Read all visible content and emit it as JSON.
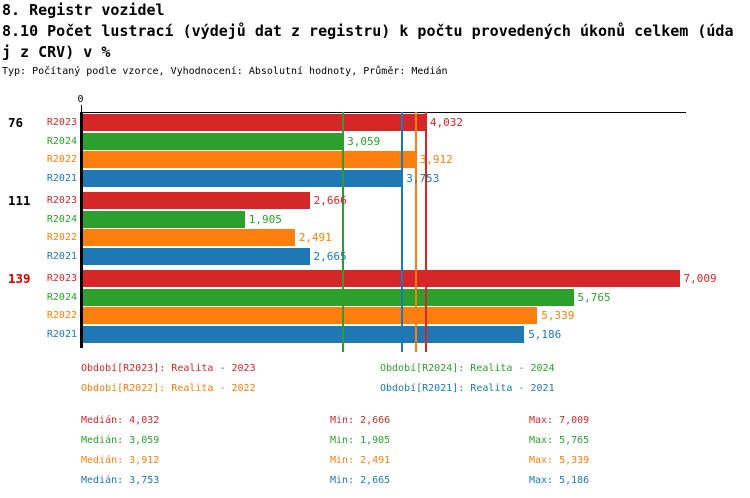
{
  "header": {
    "title": "8. Registr vozidel",
    "subtitle_line1": "8.10 Počet lustrací (výdejů dat z registru) k počtu provedených úkonů celkem (úda",
    "subtitle_line2": "j z CRV) v %",
    "meta": "Typ: Počítaný podle vzorce, Vyhodnocení: Absolutní hodnoty, Průměr: Medián"
  },
  "colors": {
    "R2023": "#d62728",
    "R2024": "#2ca02c",
    "R2022": "#ff7f0e",
    "R2021": "#1f77b4",
    "axis": "#000000",
    "group_label_highlight": "#d40000"
  },
  "chart_data": {
    "type": "bar",
    "orientation": "horizontal",
    "x_origin_label": "0",
    "xlim": [
      0,
      7100
    ],
    "grid": false,
    "series_order": [
      "R2023",
      "R2024",
      "R2022",
      "R2021"
    ],
    "groups": [
      {
        "label": "76",
        "label_color": "#000000",
        "bars": [
          {
            "series": "R2023",
            "value": 4032,
            "display": "4,032"
          },
          {
            "series": "R2024",
            "value": 3059,
            "display": "3,059"
          },
          {
            "series": "R2022",
            "value": 3912,
            "display": "3,912"
          },
          {
            "series": "R2021",
            "value": 3753,
            "display": "3,753"
          }
        ]
      },
      {
        "label": "111",
        "label_color": "#000000",
        "bars": [
          {
            "series": "R2023",
            "value": 2666,
            "display": "2,666"
          },
          {
            "series": "R2024",
            "value": 1905,
            "display": "1,905"
          },
          {
            "series": "R2022",
            "value": 2491,
            "display": "2,491"
          },
          {
            "series": "R2021",
            "value": 2665,
            "display": "2,665"
          }
        ]
      },
      {
        "label": "139",
        "label_color": "#d40000",
        "bars": [
          {
            "series": "R2023",
            "value": 7009,
            "display": "7,009"
          },
          {
            "series": "R2024",
            "value": 5765,
            "display": "5,765"
          },
          {
            "series": "R2022",
            "value": 5339,
            "display": "5,339"
          },
          {
            "series": "R2021",
            "value": 5186,
            "display": "5,186"
          }
        ]
      }
    ],
    "median_lines": [
      {
        "series": "R2023",
        "value": 4032
      },
      {
        "series": "R2024",
        "value": 3059
      },
      {
        "series": "R2022",
        "value": 3912
      },
      {
        "series": "R2021",
        "value": 3753
      }
    ]
  },
  "legend": {
    "items": [
      {
        "label": "Období[R2023]: Realita - 2023",
        "series": "R2023"
      },
      {
        "label": "Období[R2024]: Realita - 2024",
        "series": "R2024"
      },
      {
        "label": "Období[R2022]: Realita - 2022",
        "series": "R2022"
      },
      {
        "label": "Období[R2021]: Realita - 2021",
        "series": "R2021"
      }
    ]
  },
  "stats": {
    "rows": [
      {
        "series": "R2023",
        "median": "Medián: 4,032",
        "min": "Min: 2,666",
        "max": "Max: 7,009"
      },
      {
        "series": "R2024",
        "median": "Medián: 3,059",
        "min": "Min: 1,905",
        "max": "Max: 5,765"
      },
      {
        "series": "R2022",
        "median": "Medián: 3,912",
        "min": "Min: 2,491",
        "max": "Max: 5,339"
      },
      {
        "series": "R2021",
        "median": "Medián: 3,753",
        "min": "Min: 2,665",
        "max": "Max: 5,186"
      }
    ]
  }
}
